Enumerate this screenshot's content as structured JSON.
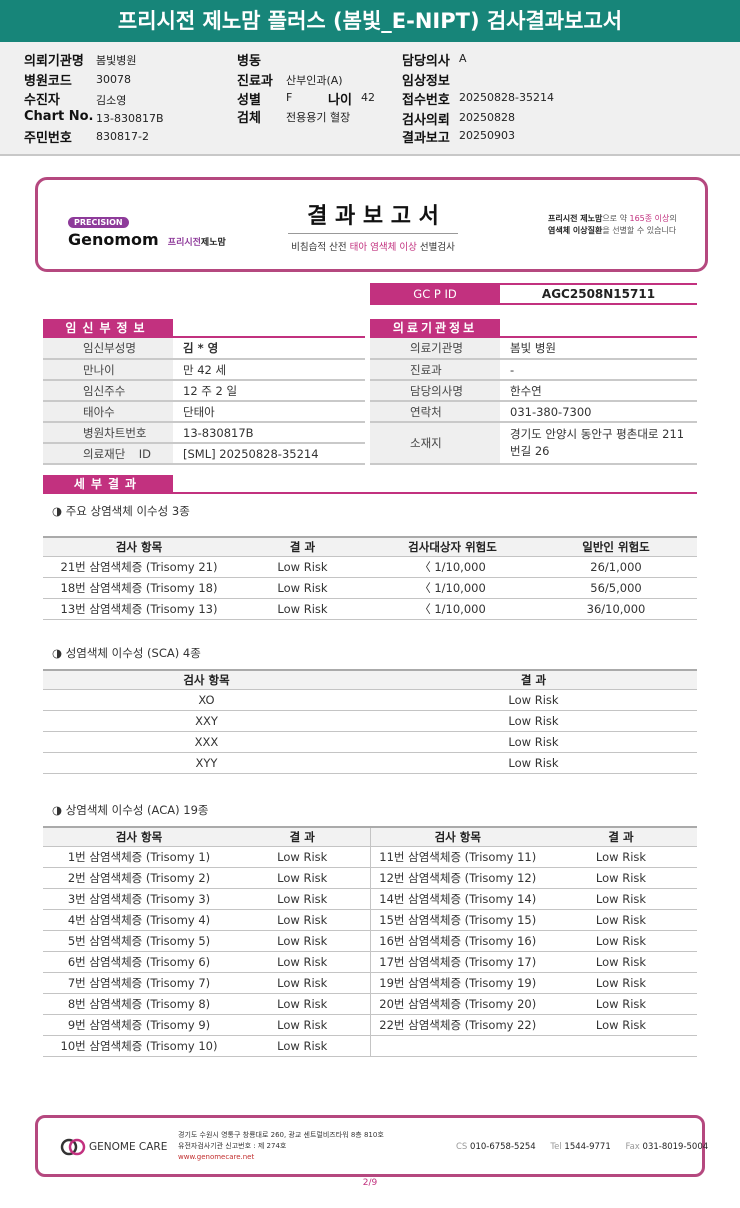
{
  "title": "프리시전 제노맘 플러스 (봄빛_E-NIPT) 검사결과보고서",
  "patient_info": {
    "institution_label": "의뢰기관명",
    "institution": "봄빛병원",
    "hospital_code_label": "병원코드",
    "hospital_code": "30078",
    "patient_label": "수진자",
    "patient": "김소영",
    "chart_label": "Chart No.",
    "chart": "13-830817B",
    "rrn_label": "주민번호",
    "rrn": "830817-2",
    "ward_label": "병동",
    "ward": "",
    "dept_label": "진료과",
    "dept": "산부인과(A)",
    "sex_label": "성별",
    "sex": "F",
    "age_label": "나이",
    "age": "42",
    "specimen_label": "검체",
    "specimen": "전용용기 혈장",
    "doctor_label": "담당의사",
    "doctor": "A",
    "clinical_label": "임상정보",
    "clinical": "",
    "receipt_label": "접수번호",
    "receipt": "20250828-35214",
    "request_label": "검사의뢰",
    "request": "20250828",
    "report_label": "결과보고",
    "report": "20250903"
  },
  "report_header": {
    "badge": "PRECISION",
    "brand": "Genomom",
    "brand_sub1": "프리시전",
    "brand_sub2": "제노맘",
    "title": "결 과 보 고 서",
    "subtitle_pre": "비침습적 산전 ",
    "subtitle_hl": "태아 염색체 이상",
    "subtitle_post": " 선별검사",
    "tag1_a": "프리시전 제노맘",
    "tag1_b": "으로 약 ",
    "tag1_c": "165종 이상",
    "tag1_d": "의",
    "tag2_a": "염색체 이상질환",
    "tag2_b": "을 선별할 수 있습니다"
  },
  "gcpid": {
    "label": "GC P ID",
    "value": "AGC2508N15711"
  },
  "pregnant": {
    "header": "임신부정보",
    "rows": [
      {
        "label": "임신부성명",
        "value": "김 * 영"
      },
      {
        "label": "만나이",
        "value": "만 42 세"
      },
      {
        "label": "임신주수",
        "value": "12 주 2 일"
      },
      {
        "label": "태아수",
        "value": "단태아"
      },
      {
        "label": "병원차트번호",
        "value": "13-830817B"
      },
      {
        "label": "의료재단 ID",
        "value": "[SML] 20250828-35214"
      }
    ]
  },
  "hospital": {
    "header": "의료기관정보",
    "rows": [
      {
        "label": "의료기관명",
        "value": "봄빛 병원"
      },
      {
        "label": "진료과",
        "value": "-"
      },
      {
        "label": "담당의사명",
        "value": "한수연"
      },
      {
        "label": "연락처",
        "value": "031-380-7300"
      },
      {
        "label": "소재지",
        "value": "경기도 안양시 동안구 평촌대로 211번길 26"
      }
    ]
  },
  "detail_header": "세부결과",
  "major": {
    "title": "◑ 주요 상염색체 이수성 3종",
    "headers": [
      "검사 항목",
      "결 과",
      "검사대상자 위험도",
      "일반인 위험도"
    ],
    "rows": [
      [
        "21번 삼염색체증 (Trisomy 21)",
        "Low Risk",
        "〈 1/10,000",
        "26/1,000"
      ],
      [
        "18번 삼염색체증 (Trisomy 18)",
        "Low Risk",
        "〈 1/10,000",
        "56/5,000"
      ],
      [
        "13번 삼염색체증 (Trisomy 13)",
        "Low Risk",
        "〈 1/10,000",
        "36/10,000"
      ]
    ]
  },
  "sca": {
    "title": "◑ 성염색체 이수성 (SCA) 4종",
    "headers": [
      "검사 항목",
      "결 과"
    ],
    "rows": [
      [
        "XO",
        "Low Risk"
      ],
      [
        "XXY",
        "Low Risk"
      ],
      [
        "XXX",
        "Low Risk"
      ],
      [
        "XYY",
        "Low Risk"
      ]
    ]
  },
  "aca": {
    "title": "◑ 상염색체 이수성 (ACA) 19종",
    "headers": [
      "검사 항목",
      "결 과",
      "검사 항목",
      "결 과"
    ],
    "rows": [
      [
        "1번 삼염색체증 (Trisomy 1)",
        "Low Risk",
        "11번 삼염색체증 (Trisomy 11)",
        "Low Risk"
      ],
      [
        "2번 삼염색체증 (Trisomy 2)",
        "Low Risk",
        "12번 삼염색체증 (Trisomy 12)",
        "Low Risk"
      ],
      [
        "3번 삼염색체증 (Trisomy 3)",
        "Low Risk",
        "14번 삼염색체증 (Trisomy 14)",
        "Low Risk"
      ],
      [
        "4번 삼염색체증 (Trisomy 4)",
        "Low Risk",
        "15번 삼염색체증 (Trisomy 15)",
        "Low Risk"
      ],
      [
        "5번 삼염색체증 (Trisomy 5)",
        "Low Risk",
        "16번 삼염색체증 (Trisomy 16)",
        "Low Risk"
      ],
      [
        "6번 삼염색체증 (Trisomy 6)",
        "Low Risk",
        "17번 삼염색체증 (Trisomy 17)",
        "Low Risk"
      ],
      [
        "7번 삼염색체증 (Trisomy 7)",
        "Low Risk",
        "19번 삼염색체증 (Trisomy 19)",
        "Low Risk"
      ],
      [
        "8번 삼염색체증 (Trisomy 8)",
        "Low Risk",
        "20번 삼염색체증 (Trisomy 20)",
        "Low Risk"
      ],
      [
        "9번 삼염색체증 (Trisomy 9)",
        "Low Risk",
        "22번 삼염색체증 (Trisomy 22)",
        "Low Risk"
      ],
      [
        "10번 삼염색체증 (Trisomy 10)",
        "Low Risk",
        "",
        ""
      ]
    ]
  },
  "footer": {
    "logo": "GENOME CARE",
    "address": "경기도 수원시 영통구 창룡대로 260, 광교 센트럴비즈타워 8층 810호",
    "license": "유전자검사기관 신고번호 : 제 274호",
    "website": "www.genomecare.net",
    "cs_label": "CS",
    "cs": "010-6758-5254",
    "tel_label": "Tel",
    "tel": "1544-9771",
    "fax_label": "Fax",
    "fax": "031-8019-5004"
  },
  "page": "2/9",
  "colors": {
    "title_bar": "#178579",
    "accent": "#c2317f",
    "border": "#b5487f"
  }
}
